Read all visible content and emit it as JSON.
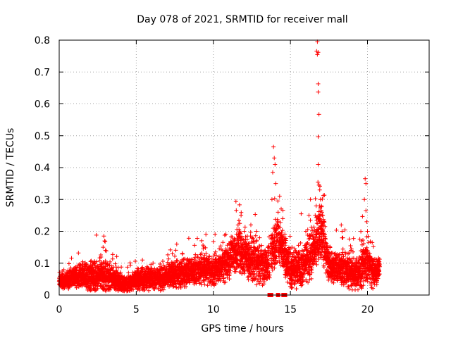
{
  "chart_data": {
    "type": "scatter",
    "title": "Day 078 of 2021, SRMTID for receiver mall",
    "xlabel": "GPS time / hours",
    "ylabel": "SRMTID / TECUs",
    "xlim": [
      0,
      24
    ],
    "ylim": [
      0,
      0.8
    ],
    "x_ticks": [
      0,
      5,
      10,
      15,
      20
    ],
    "x_tick_labels": [
      "0",
      "5",
      "10",
      "15",
      "20"
    ],
    "y_ticks": [
      0,
      0.1,
      0.2,
      0.3,
      0.4,
      0.5,
      0.6,
      0.7,
      0.8
    ],
    "y_tick_labels": [
      "0",
      "0.1",
      "0.2",
      "0.3",
      "0.4",
      "0.5",
      "0.6",
      "0.7",
      "0.8"
    ],
    "grid": true,
    "marker": "plus",
    "color": "#ff0000",
    "envelope": [
      {
        "x": 0.0,
        "base": 0.04,
        "spread": 0.02
      },
      {
        "x": 1.0,
        "base": 0.06,
        "spread": 0.03
      },
      {
        "x": 2.0,
        "base": 0.06,
        "spread": 0.04
      },
      {
        "x": 2.8,
        "base": 0.06,
        "spread": 0.05
      },
      {
        "x": 3.5,
        "base": 0.05,
        "spread": 0.03
      },
      {
        "x": 4.3,
        "base": 0.03,
        "spread": 0.02
      },
      {
        "x": 5.0,
        "base": 0.05,
        "spread": 0.03
      },
      {
        "x": 6.5,
        "base": 0.05,
        "spread": 0.03
      },
      {
        "x": 8.0,
        "base": 0.07,
        "spread": 0.04
      },
      {
        "x": 9.5,
        "base": 0.08,
        "spread": 0.04
      },
      {
        "x": 10.5,
        "base": 0.08,
        "spread": 0.04
      },
      {
        "x": 11.5,
        "base": 0.14,
        "spread": 0.06
      },
      {
        "x": 12.5,
        "base": 0.11,
        "spread": 0.06
      },
      {
        "x": 13.5,
        "base": 0.09,
        "spread": 0.05
      },
      {
        "x": 14.2,
        "base": 0.18,
        "spread": 0.07
      },
      {
        "x": 15.0,
        "base": 0.08,
        "spread": 0.05
      },
      {
        "x": 15.7,
        "base": 0.08,
        "spread": 0.05
      },
      {
        "x": 16.5,
        "base": 0.14,
        "spread": 0.07
      },
      {
        "x": 17.0,
        "base": 0.2,
        "spread": 0.08
      },
      {
        "x": 17.5,
        "base": 0.09,
        "spread": 0.04
      },
      {
        "x": 18.5,
        "base": 0.08,
        "spread": 0.05
      },
      {
        "x": 19.2,
        "base": 0.06,
        "spread": 0.04
      },
      {
        "x": 19.8,
        "base": 0.1,
        "spread": 0.06
      },
      {
        "x": 20.4,
        "base": 0.07,
        "spread": 0.04
      },
      {
        "x": 20.8,
        "base": 0.08,
        "spread": 0.03
      }
    ],
    "peaks": [
      {
        "x": 2.9,
        "y": 0.185
      },
      {
        "x": 2.95,
        "y": 0.17
      },
      {
        "x": 2.85,
        "y": 0.15
      },
      {
        "x": 3.0,
        "y": 0.14
      },
      {
        "x": 11.7,
        "y": 0.283
      },
      {
        "x": 11.8,
        "y": 0.25
      },
      {
        "x": 11.6,
        "y": 0.22
      },
      {
        "x": 12.0,
        "y": 0.2
      },
      {
        "x": 13.9,
        "y": 0.465
      },
      {
        "x": 13.95,
        "y": 0.43
      },
      {
        "x": 14.0,
        "y": 0.41
      },
      {
        "x": 13.85,
        "y": 0.385
      },
      {
        "x": 14.05,
        "y": 0.35
      },
      {
        "x": 13.8,
        "y": 0.3
      },
      {
        "x": 14.3,
        "y": 0.31
      },
      {
        "x": 14.4,
        "y": 0.27
      },
      {
        "x": 14.2,
        "y": 0.26
      },
      {
        "x": 14.5,
        "y": 0.24
      },
      {
        "x": 16.75,
        "y": 0.795
      },
      {
        "x": 16.7,
        "y": 0.765
      },
      {
        "x": 16.75,
        "y": 0.755
      },
      {
        "x": 16.8,
        "y": 0.762
      },
      {
        "x": 16.8,
        "y": 0.663
      },
      {
        "x": 16.8,
        "y": 0.637
      },
      {
        "x": 16.85,
        "y": 0.567
      },
      {
        "x": 16.8,
        "y": 0.497
      },
      {
        "x": 16.8,
        "y": 0.41
      },
      {
        "x": 16.85,
        "y": 0.345
      },
      {
        "x": 16.9,
        "y": 0.33
      },
      {
        "x": 16.95,
        "y": 0.3
      },
      {
        "x": 17.0,
        "y": 0.28
      },
      {
        "x": 17.05,
        "y": 0.26
      },
      {
        "x": 17.1,
        "y": 0.25
      },
      {
        "x": 17.15,
        "y": 0.23
      },
      {
        "x": 16.3,
        "y": 0.3
      },
      {
        "x": 16.2,
        "y": 0.25
      },
      {
        "x": 16.0,
        "y": 0.2
      },
      {
        "x": 15.7,
        "y": 0.255
      },
      {
        "x": 18.3,
        "y": 0.22
      },
      {
        "x": 18.35,
        "y": 0.2
      },
      {
        "x": 18.4,
        "y": 0.18
      },
      {
        "x": 19.85,
        "y": 0.365
      },
      {
        "x": 19.9,
        "y": 0.35
      },
      {
        "x": 19.8,
        "y": 0.3
      },
      {
        "x": 19.9,
        "y": 0.265
      },
      {
        "x": 19.95,
        "y": 0.23
      },
      {
        "x": 20.0,
        "y": 0.2
      },
      {
        "x": 19.5,
        "y": 0.175
      },
      {
        "x": 19.6,
        "y": 0.17
      },
      {
        "x": 12.8,
        "y": 0.2
      },
      {
        "x": 13.0,
        "y": 0.18
      },
      {
        "x": 15.1,
        "y": 0.15
      },
      {
        "x": 10.6,
        "y": 0.14
      }
    ],
    "zero_points": [
      13.65,
      13.75,
      14.2,
      14.55,
      14.65
    ]
  }
}
